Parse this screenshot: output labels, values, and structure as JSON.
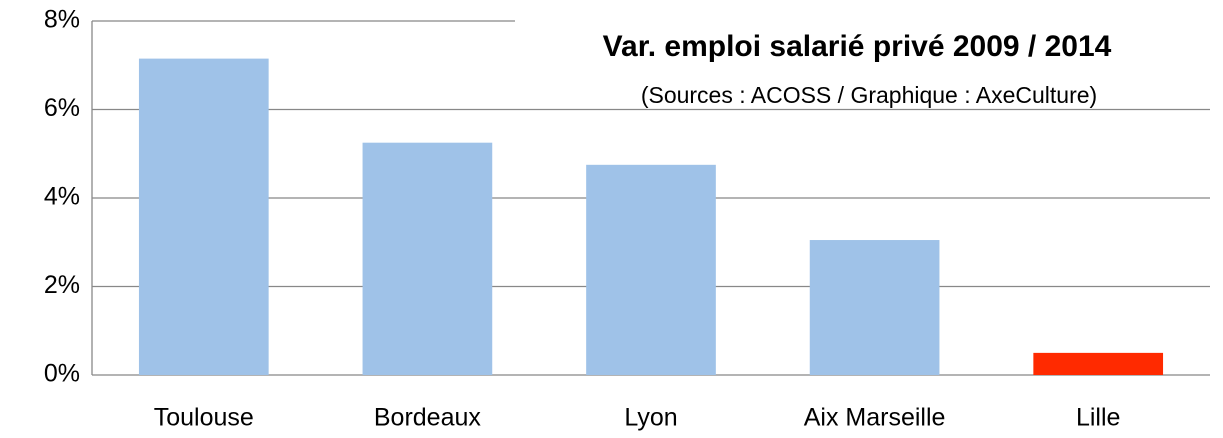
{
  "chart_data": {
    "type": "bar",
    "title": "Var. emploi salarié privé 2009 / 2014",
    "subtitle": "(Sources : ACOSS / Graphique : AxeCulture)",
    "categories": [
      "Toulouse",
      "Bordeaux",
      "Lyon",
      "Aix Marseille",
      "Lille"
    ],
    "values": [
      7.15,
      5.25,
      4.75,
      3.05,
      0.5
    ],
    "colors": [
      "#9fc2e8",
      "#9fc2e8",
      "#9fc2e8",
      "#9fc2e8",
      "#ff2a00"
    ],
    "ylim": [
      0,
      8
    ],
    "yticks": [
      {
        "value": 0,
        "label": "0%"
      },
      {
        "value": 2,
        "label": "2%"
      },
      {
        "value": 4,
        "label": "4%"
      },
      {
        "value": 6,
        "label": "6%"
      },
      {
        "value": 8,
        "label": "8%"
      }
    ],
    "grid": true
  }
}
